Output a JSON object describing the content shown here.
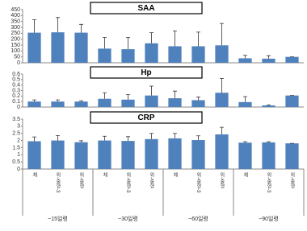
{
  "chart_data": [
    {
      "type": "bar",
      "title": "SAA",
      "color": "#4f81bd",
      "values": [
        255,
        258,
        255,
        120,
        115,
        165,
        140,
        140,
        148,
        38,
        35,
        50
      ],
      "errors": [
        110,
        125,
        70,
        95,
        100,
        90,
        130,
        120,
        185,
        25,
        25,
        0
      ],
      "ylim": [
        0,
        450
      ],
      "yticks": [
        0,
        50,
        100,
        150,
        200,
        250,
        300,
        350,
        400,
        450
      ]
    },
    {
      "type": "bar",
      "title": "Hp",
      "color": "#4f81bd",
      "values": [
        0.1,
        0.1,
        0.1,
        0.15,
        0.135,
        0.21,
        0.16,
        0.125,
        0.26,
        0.09,
        0.03,
        0.21
      ],
      "errors": [
        0.03,
        0.03,
        0.015,
        0.11,
        0.09,
        0.17,
        0.13,
        0.055,
        0.26,
        0.1,
        0.01,
        0
      ],
      "ylim": [
        0,
        0.6
      ],
      "yticks": [
        0,
        0.1,
        0.2,
        0.3,
        0.4,
        0.5,
        0.6
      ]
    },
    {
      "type": "bar",
      "title": "CRP",
      "color": "#4f81bd",
      "categories": [
        "체",
        "외-중형-3",
        "외-중형",
        "체",
        "외-중형-3",
        "외-중형",
        "체",
        "외-중형-3",
        "외-중형",
        "체",
        "외-중형-3",
        "외-중형"
      ],
      "group_labels": [
        "~15일령",
        "~30일령",
        "~60일령",
        "~90일령"
      ],
      "values": [
        1.95,
        2.0,
        1.88,
        2.0,
        1.97,
        2.1,
        2.15,
        2.03,
        2.43,
        1.85,
        1.87,
        1.8
      ],
      "errors": [
        0.3,
        0.35,
        0.1,
        0.3,
        0.3,
        0.4,
        0.35,
        0.3,
        0.5,
        0.07,
        0.05,
        0
      ],
      "ylim": [
        0,
        3.5
      ],
      "yticks": [
        0,
        0.5,
        1,
        1.5,
        2,
        2.5,
        3,
        3.5
      ]
    }
  ]
}
